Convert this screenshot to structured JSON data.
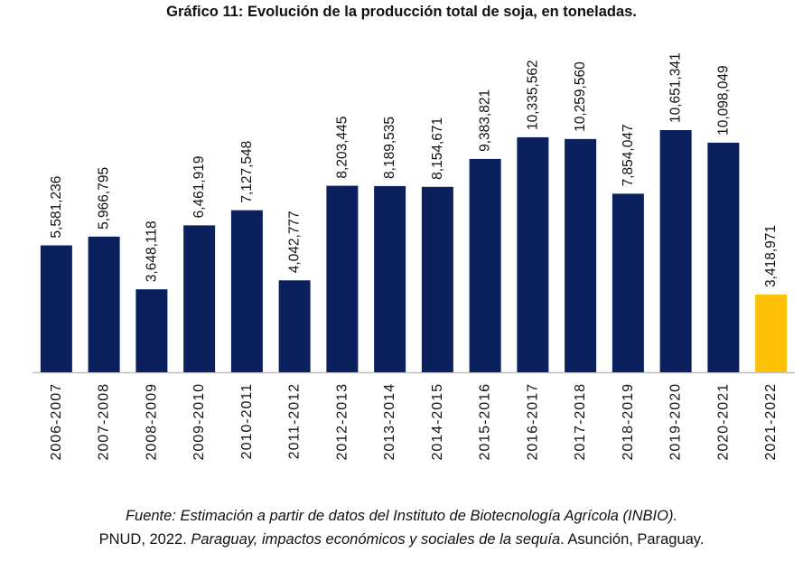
{
  "chart_data": {
    "type": "bar",
    "title": "Gráfico 11: Evolución de la producción total de soja, en toneladas.",
    "xlabel": "",
    "ylabel": "",
    "ylim": [
      0,
      11000000
    ],
    "grid": false,
    "categories": [
      "2006-2007",
      "2007-2008",
      "2008-2009",
      "2009-2010",
      "2010-2011",
      "2011-2012",
      "2012-2013",
      "2013-2014",
      "2014-2015",
      "2015-2016",
      "2016-2017",
      "2017-2018",
      "2018-2019",
      "2019-2020",
      "2020-2021",
      "2021-2022"
    ],
    "values": [
      5581236,
      5966795,
      3648118,
      6461919,
      7127548,
      4042777,
      8203445,
      8189535,
      8154671,
      9383821,
      10335562,
      10259560,
      7854047,
      10651341,
      10098049,
      3418971
    ],
    "labels": [
      "5,581,236",
      "5,966,795",
      "3,648,118",
      "6,461,919",
      "7,127,548",
      "4,042,777",
      "8,203,445",
      "8,189,535",
      "8,154,671",
      "9,383,821",
      "10,335,562",
      "10,259,560",
      "7,854,047",
      "10,651,341",
      "10,098,049",
      "3,418,971"
    ],
    "colors": {
      "default": "#0a215e",
      "highlight": "#fcc006",
      "axis": "#bfbfbf"
    },
    "highlight_index": 15
  },
  "source": {
    "line1": "Fuente: Estimación a partir de datos del Instituto de Biotecnología Agrícola (INBIO).",
    "line2_a": "PNUD, 2022. ",
    "line2_b": "Paraguay, impactos económicos y sociales de la sequía",
    "line2_c": ". Asunción, Paraguay."
  }
}
